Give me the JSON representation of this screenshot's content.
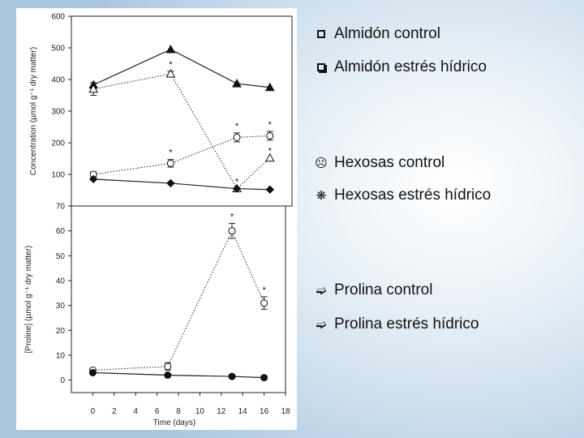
{
  "legend": {
    "items": [
      {
        "label": "Almidón control",
        "icon": "square-outline-icon"
      },
      {
        "label": "Almidón estrés hídrico",
        "icon": "square-shadow-icon"
      },
      {
        "label": "Hexosas control",
        "icon": "smiley-icon"
      },
      {
        "label": "Hexosas estrés hídrico",
        "icon": "asterisk-flower-icon"
      },
      {
        "label": "Prolina control",
        "icon": "right-arrow-icon"
      },
      {
        "label": "Prolina estrés hídrico",
        "icon": "right-arrow-icon"
      }
    ]
  },
  "chart_data": [
    {
      "type": "line",
      "ylabel": "Concentration (µmol g⁻¹ dry matter)",
      "ylim": [
        0,
        600
      ],
      "yticks": [
        "100",
        "200",
        "300",
        "400",
        "500",
        "600"
      ],
      "xlim": [
        -2,
        18
      ],
      "series": [
        {
          "marker": "filled-triangle",
          "style": "solid",
          "x": [
            0,
            7,
            13,
            16
          ],
          "y": [
            383,
            495,
            387,
            375
          ]
        },
        {
          "marker": "open-triangle",
          "style": "dotted",
          "x": [
            0,
            7,
            13,
            16
          ],
          "y": [
            370,
            418,
            55,
            152
          ],
          "errors": [
            20,
            8,
            0,
            0
          ],
          "stars": [
            false,
            true,
            true,
            true
          ]
        },
        {
          "marker": "open-circle",
          "style": "dotted",
          "x": [
            0,
            7,
            13,
            16
          ],
          "y": [
            100,
            135,
            217,
            222
          ],
          "errors": [
            8,
            12,
            14,
            14
          ],
          "stars": [
            false,
            true,
            true,
            true
          ]
        },
        {
          "marker": "filled-diamond",
          "style": "solid",
          "x": [
            0,
            7,
            13,
            16
          ],
          "y": [
            85,
            72,
            55,
            52
          ]
        }
      ]
    },
    {
      "type": "line",
      "ylabel": "[Proline] (µmol g⁻¹ dry matter)",
      "xlabel": "Time (days)",
      "ylim": [
        -5,
        70
      ],
      "yticks": [
        "0",
        "10",
        "20",
        "30",
        "40",
        "50",
        "60",
        "70"
      ],
      "xlim": [
        -2,
        18
      ],
      "xticks": [
        "0",
        "2",
        "4",
        "6",
        "8",
        "10",
        "12",
        "14",
        "16",
        "18"
      ],
      "series": [
        {
          "marker": "open-circle",
          "style": "dotted",
          "x": [
            0,
            7,
            13,
            16
          ],
          "y": [
            4,
            5.5,
            60,
            31
          ],
          "errors": [
            0.8,
            1.5,
            3,
            2.5
          ],
          "stars": [
            false,
            false,
            true,
            true
          ]
        },
        {
          "marker": "filled-circle",
          "style": "solid",
          "x": [
            0,
            7,
            13,
            16
          ],
          "y": [
            3,
            2,
            1.5,
            1
          ]
        }
      ]
    }
  ]
}
